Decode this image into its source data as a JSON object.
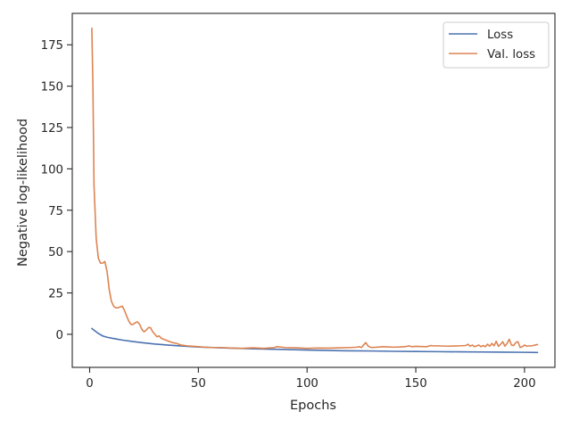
{
  "chart_data": {
    "type": "line",
    "title": "",
    "xlabel": "Epochs",
    "ylabel": "Negative log-likelihood",
    "xlim": [
      -8,
      214
    ],
    "ylim": [
      -20,
      194
    ],
    "x_ticks": [
      0,
      50,
      100,
      150,
      200
    ],
    "y_ticks": [
      0,
      25,
      50,
      75,
      100,
      125,
      150,
      175
    ],
    "grid": false,
    "legend_position": "top-right",
    "series": [
      {
        "name": "Loss",
        "color": "#4c72b0",
        "x": [
          1,
          2,
          4,
          6,
          8,
          10,
          12,
          15,
          20,
          25,
          30,
          35,
          40,
          45,
          50,
          60,
          70,
          80,
          90,
          100,
          110,
          120,
          130,
          140,
          150,
          160,
          170,
          180,
          190,
          200,
          206
        ],
        "y": [
          3.5,
          2.5,
          0.5,
          -1.0,
          -1.8,
          -2.3,
          -2.8,
          -3.5,
          -4.4,
          -5.2,
          -5.9,
          -6.4,
          -6.9,
          -7.3,
          -7.7,
          -8.2,
          -8.6,
          -8.9,
          -9.2,
          -9.5,
          -9.8,
          -10.0,
          -10.1,
          -10.3,
          -10.4,
          -10.5,
          -10.6,
          -10.7,
          -10.8,
          -10.9,
          -11.0
        ]
      },
      {
        "name": "Val. loss",
        "color": "#dd8452",
        "x": [
          1,
          1.5,
          2,
          3,
          4,
          5,
          6,
          7,
          8,
          9,
          10,
          11,
          12,
          13,
          14,
          15,
          16,
          17,
          18,
          19,
          20,
          21,
          22,
          23,
          24,
          25,
          26,
          27,
          28,
          29,
          30,
          31,
          32,
          33,
          34,
          35,
          36,
          38,
          40,
          42,
          45,
          50,
          55,
          60,
          65,
          70,
          75,
          80,
          85,
          86,
          90,
          95,
          100,
          105,
          110,
          115,
          120,
          123,
          124,
          125,
          126,
          127,
          128,
          129,
          130,
          135,
          140,
          145,
          147,
          148,
          150,
          155,
          157,
          158,
          160,
          165,
          170,
          173,
          174,
          175,
          176,
          177,
          178,
          179,
          180,
          181,
          182,
          183,
          184,
          185,
          186,
          187,
          188,
          189,
          190,
          191,
          192,
          193,
          194,
          195,
          196,
          197,
          198,
          199,
          200,
          201,
          202,
          203,
          204,
          205,
          206
        ],
        "y": [
          185,
          150,
          90,
          58,
          46,
          43,
          43,
          44,
          38,
          27,
          20,
          17,
          16,
          16,
          16.5,
          17,
          14.5,
          11,
          8,
          6,
          6,
          7,
          7.5,
          6,
          3,
          1.5,
          2.5,
          4,
          4,
          1.5,
          0,
          -1.5,
          -1,
          -2.5,
          -3,
          -3.5,
          -4,
          -5,
          -5.5,
          -6.5,
          -7,
          -7.5,
          -8,
          -8,
          -8.3,
          -8.5,
          -8.2,
          -8.5,
          -8,
          -7.5,
          -8,
          -8.2,
          -8.5,
          -8.3,
          -8.4,
          -8.2,
          -8,
          -7.8,
          -7.5,
          -8,
          -6.5,
          -5,
          -7,
          -7.8,
          -8,
          -7.5,
          -7.8,
          -7.5,
          -7,
          -7.5,
          -7.3,
          -7.5,
          -6.8,
          -7,
          -7,
          -7.2,
          -7,
          -6.8,
          -6,
          -7.2,
          -6.5,
          -7.5,
          -7,
          -6.5,
          -7.5,
          -6.8,
          -7.5,
          -6,
          -7.2,
          -5.5,
          -7,
          -4.2,
          -7.3,
          -6,
          -4.5,
          -7.2,
          -5.5,
          -3,
          -6.5,
          -6.8,
          -5,
          -4.5,
          -8,
          -7.5,
          -6.5,
          -7.2,
          -7,
          -7,
          -6.8,
          -6.5,
          -6.2
        ]
      }
    ]
  }
}
